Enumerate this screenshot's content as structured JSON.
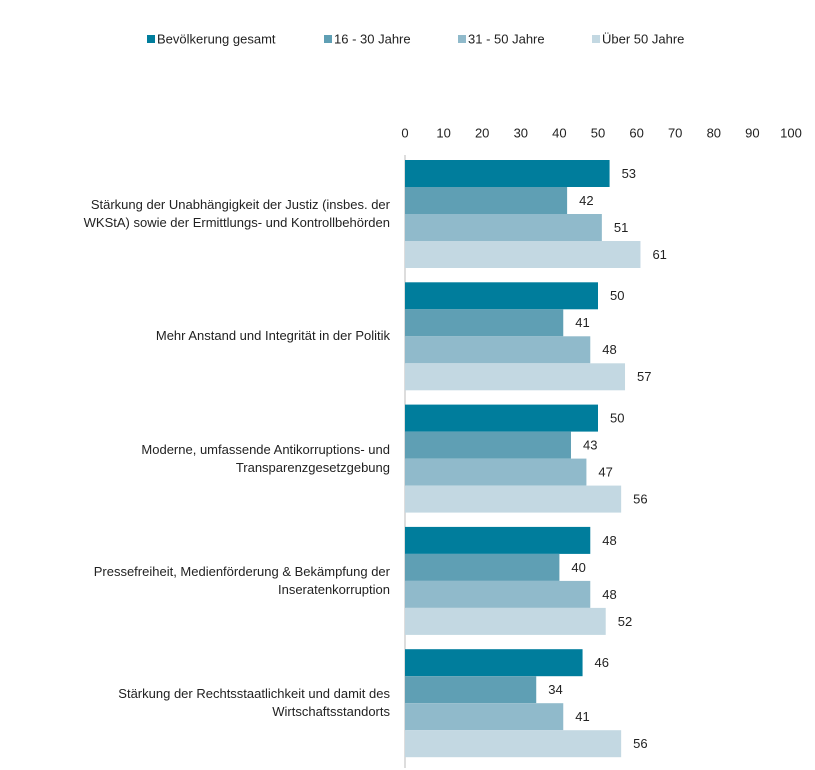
{
  "chart_data": {
    "type": "bar",
    "orientation": "horizontal",
    "categories": [
      "Stärkung der Unabhängigkeit der Justiz (insbes. der\nWKStA) sowie der Ermittlungs- und Kontrollbehörden",
      "Mehr Anstand und Integrität in der Politik",
      "Moderne, umfassende Antikorruptions- und\nTransparenzgesetzgebung",
      "Pressefreiheit, Medienförderung & Bekämpfung der\nInseratenkorruption",
      "Stärkung der Rechtsstaatlichkeit und damit des\nWirtschaftsstandorts"
    ],
    "series": [
      {
        "name": "Bevölkerung gesamt",
        "color": "#007d9c",
        "values": [
          53,
          50,
          50,
          48,
          46
        ]
      },
      {
        "name": "16 - 30 Jahre",
        "color": "#5f9fb4",
        "values": [
          42,
          41,
          43,
          40,
          34
        ]
      },
      {
        "name": "31 - 50 Jahre",
        "color": "#90bacb",
        "values": [
          51,
          48,
          47,
          48,
          41
        ]
      },
      {
        "name": "Über 50 Jahre",
        "color": "#c3d8e2",
        "values": [
          61,
          57,
          56,
          52,
          56
        ]
      }
    ],
    "xlim": [
      0,
      100
    ],
    "xticks": [
      0,
      10,
      20,
      30,
      40,
      50,
      60,
      70,
      80,
      90,
      100
    ],
    "legend": "top",
    "grid": false
  }
}
